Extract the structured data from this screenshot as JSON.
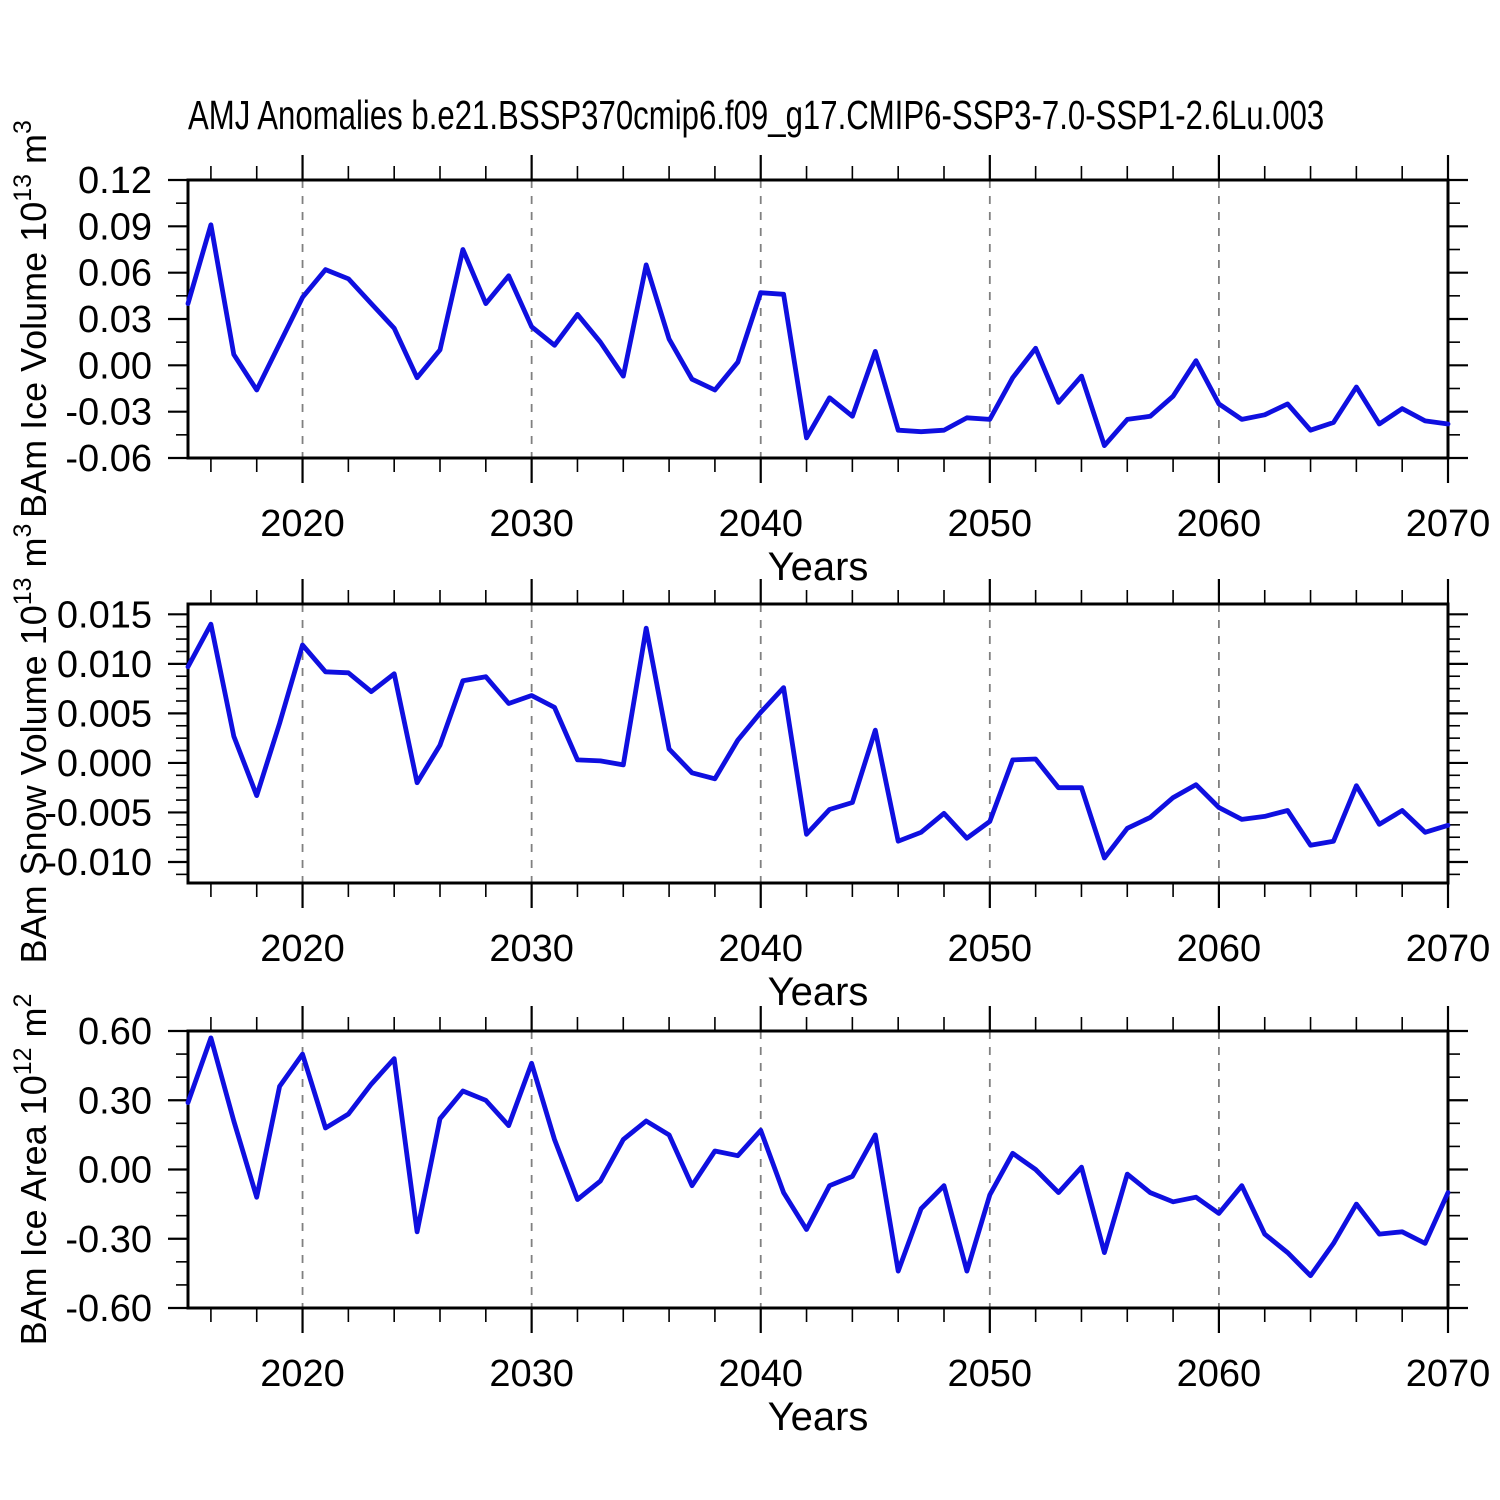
{
  "title": "AMJ Anomalies b.e21.BSSP370cmip6.f09_g17.CMIP6-SSP3-7.0-SSP1-2.6Lu.003",
  "colors": {
    "line": "#0f0fe0",
    "grid": "#808080",
    "axis": "#000000",
    "background": "#ffffff"
  },
  "chart_data": [
    {
      "name": "ice-volume",
      "type": "line",
      "ylabel_text": "BAm Ice Volume 10^13 m^3",
      "ylabel_parts": [
        {
          "t": "BAm Ice Volume 10"
        },
        {
          "t": "13",
          "sup": true
        },
        {
          "t": " m"
        },
        {
          "t": "3",
          "sup": true
        }
      ],
      "xlabel": "Years",
      "x_range": [
        2015,
        2070
      ],
      "values": [
        0.04,
        0.091,
        0.007,
        -0.016,
        0.014,
        0.044,
        0.062,
        0.056,
        0.04,
        0.024,
        -0.008,
        0.01,
        0.075,
        0.04,
        0.058,
        0.025,
        0.013,
        0.033,
        0.015,
        -0.007,
        0.065,
        0.017,
        -0.009,
        -0.016,
        0.002,
        0.047,
        0.046,
        -0.047,
        -0.021,
        -0.033,
        0.009,
        -0.042,
        -0.043,
        -0.042,
        -0.034,
        -0.035,
        -0.008,
        0.011,
        -0.024,
        -0.007,
        -0.052,
        -0.035,
        -0.033,
        -0.02,
        0.003,
        -0.025,
        -0.035,
        -0.032,
        -0.025,
        -0.042,
        -0.037,
        -0.014,
        -0.038,
        -0.028,
        -0.036,
        -0.038
      ],
      "ylim_axis": [
        -0.06,
        0.12
      ],
      "ytick_values": [
        0.12,
        0.09,
        0.06,
        0.03,
        0.0,
        -0.03,
        -0.06
      ],
      "ytick_labels": [
        "0.12",
        "0.09",
        "0.06",
        "0.03",
        "0.00",
        "-0.03",
        "-0.06"
      ],
      "ytick_minor_step": 0.015,
      "xticks_major": [
        2020,
        2030,
        2040,
        2050,
        2060,
        2070
      ],
      "xtick_labels": [
        "2020",
        "2030",
        "2040",
        "2050",
        "2060",
        "2070"
      ],
      "xtick_minor_step": 2,
      "gridlines_x": [
        2020,
        2030,
        2040,
        2050,
        2060
      ],
      "grid_style": "dashed-vertical"
    },
    {
      "name": "snow-volume",
      "type": "line",
      "ylabel_text": "BAm Snow Volume 10^13 m^3",
      "ylabel_parts": [
        {
          "t": "BAm Snow Volume 10"
        },
        {
          "t": "13",
          "sup": true
        },
        {
          "t": " m"
        },
        {
          "t": "3",
          "sup": true
        }
      ],
      "xlabel": "Years",
      "x_range": [
        2015,
        2070
      ],
      "values": [
        0.0097,
        0.014,
        0.0027,
        -0.0033,
        0.004,
        0.0119,
        0.0092,
        0.0091,
        0.0072,
        0.009,
        -0.002,
        0.0018,
        0.0083,
        0.0087,
        0.006,
        0.0068,
        0.0056,
        0.0003,
        0.0002,
        -0.0002,
        0.0136,
        0.0014,
        -0.001,
        -0.0016,
        0.0023,
        0.0051,
        0.0076,
        -0.0072,
        -0.0047,
        -0.004,
        0.0033,
        -0.0079,
        -0.007,
        -0.0051,
        -0.0076,
        -0.0059,
        0.0003,
        0.0004,
        -0.0025,
        -0.0025,
        -0.0096,
        -0.0066,
        -0.0055,
        -0.0035,
        -0.0022,
        -0.0045,
        -0.0057,
        -0.0054,
        -0.0048,
        -0.0083,
        -0.0079,
        -0.0023,
        -0.0062,
        -0.0048,
        -0.007,
        -0.0063
      ],
      "ylim_axis": [
        -0.01212,
        0.01604
      ],
      "ytick_values": [
        0.015,
        0.01,
        0.005,
        0.0,
        -0.005,
        -0.01
      ],
      "ytick_labels": [
        "0.015",
        "0.010",
        "0.005",
        "0.000",
        "-0.005",
        "-0.010"
      ],
      "ytick_minor_step": 0.00125,
      "xticks_major": [
        2020,
        2030,
        2040,
        2050,
        2060,
        2070
      ],
      "xtick_labels": [
        "2020",
        "2030",
        "2040",
        "2050",
        "2060",
        "2070"
      ],
      "xtick_minor_step": 2,
      "gridlines_x": [
        2020,
        2030,
        2040,
        2050,
        2060
      ],
      "grid_style": "dashed-vertical"
    },
    {
      "name": "ice-area",
      "type": "line",
      "ylabel_text": "BAm Ice Area 10^12 m^2",
      "ylabel_parts": [
        {
          "t": "BAm Ice Area 10"
        },
        {
          "t": "12",
          "sup": true
        },
        {
          "t": " m"
        },
        {
          "t": "2",
          "sup": true
        }
      ],
      "xlabel": "Years",
      "x_range": [
        2015,
        2070
      ],
      "values": [
        0.29,
        0.57,
        0.21,
        -0.12,
        0.36,
        0.5,
        0.18,
        0.24,
        0.37,
        0.48,
        -0.27,
        0.22,
        0.34,
        0.3,
        0.19,
        0.46,
        0.13,
        -0.13,
        -0.05,
        0.13,
        0.21,
        0.15,
        -0.07,
        0.08,
        0.06,
        0.17,
        -0.1,
        -0.26,
        -0.07,
        -0.03,
        0.15,
        -0.44,
        -0.17,
        -0.07,
        -0.44,
        -0.11,
        0.07,
        0.0,
        -0.1,
        0.01,
        -0.36,
        -0.02,
        -0.1,
        -0.14,
        -0.12,
        -0.19,
        -0.07,
        -0.28,
        -0.36,
        -0.46,
        -0.32,
        -0.15,
        -0.28,
        -0.27,
        -0.32,
        -0.1
      ],
      "ylim_axis": [
        -0.6,
        0.6
      ],
      "ytick_values": [
        0.6,
        0.3,
        0.0,
        -0.3,
        -0.6
      ],
      "ytick_labels": [
        "0.60",
        "0.30",
        "0.00",
        "-0.30",
        "-0.60"
      ],
      "ytick_minor_step": 0.1,
      "xticks_major": [
        2020,
        2030,
        2040,
        2050,
        2060,
        2070
      ],
      "xtick_labels": [
        "2020",
        "2030",
        "2040",
        "2050",
        "2060",
        "2070"
      ],
      "xtick_minor_step": 2,
      "gridlines_x": [
        2020,
        2030,
        2040,
        2050,
        2060
      ],
      "grid_style": "dashed-vertical"
    }
  ]
}
